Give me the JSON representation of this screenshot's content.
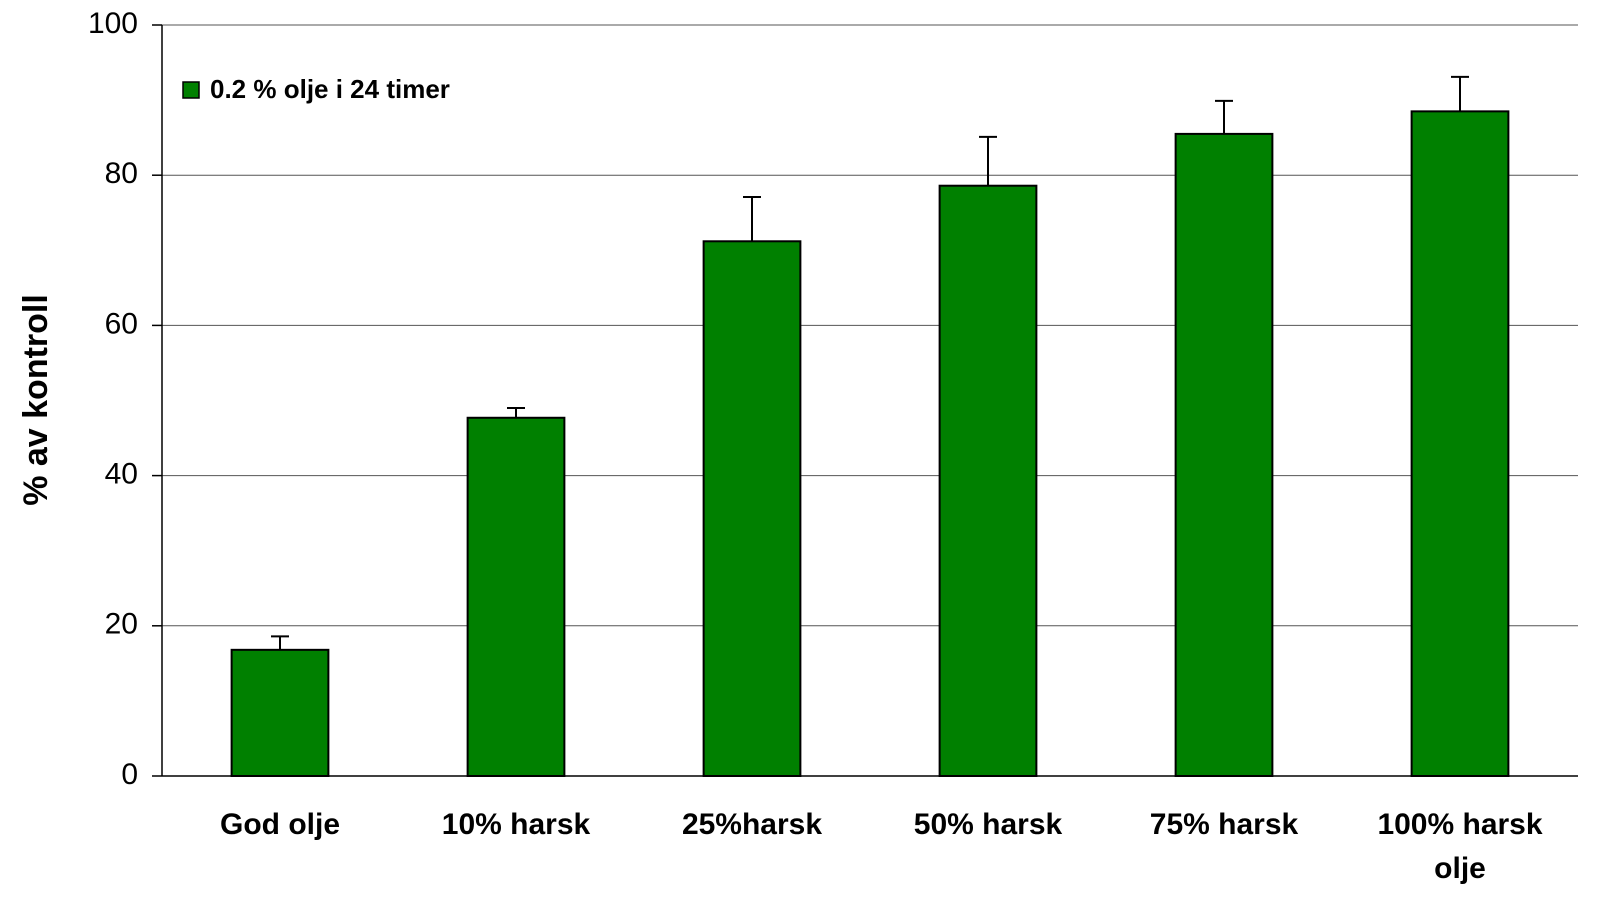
{
  "chart_data": {
    "type": "bar",
    "y_label": "% av kontroll",
    "categories": [
      "God olje",
      "10% harsk",
      "25%harsk",
      "50% harsk",
      "75% harsk",
      "100% harsk olje"
    ],
    "series": [
      {
        "name": "0.2 % olje i 24 timer",
        "color": "#008000",
        "values": [
          16.8,
          47.7,
          71.2,
          78.6,
          85.5,
          88.5
        ],
        "errors": [
          1.8,
          1.3,
          5.9,
          6.5,
          4.4,
          4.6
        ]
      }
    ],
    "ylim": [
      0,
      100
    ],
    "yticks": [
      0,
      20,
      40,
      60,
      80,
      100
    ],
    "grid": true,
    "legend": "top-left"
  }
}
